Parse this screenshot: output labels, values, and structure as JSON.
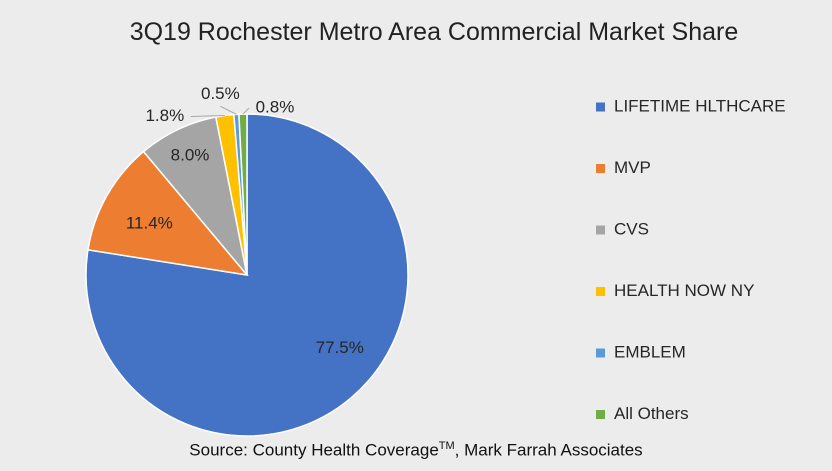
{
  "chart_data": {
    "type": "pie",
    "title": "3Q19 Rochester Metro Area Commercial Market Share",
    "categories": [
      "LIFETIME HLTHCARE",
      "MVP",
      "CVS",
      "HEALTH NOW NY",
      "EMBLEM",
      "All Others"
    ],
    "values": [
      77.5,
      11.4,
      8.0,
      1.8,
      0.5,
      0.8
    ],
    "labels": [
      "77.5%",
      "11.4%",
      "8.0%",
      "1.8%",
      "0.5%",
      "0.8%"
    ],
    "colors": [
      "#4472c4",
      "#ed7d31",
      "#a5a5a5",
      "#ffc000",
      "#5b9bd5",
      "#70ad47"
    ],
    "legend_position": "right"
  },
  "source": {
    "prefix": "Source: County Health Coverage",
    "superscript": "TM",
    "suffix": ", Mark Farrah Associates"
  }
}
